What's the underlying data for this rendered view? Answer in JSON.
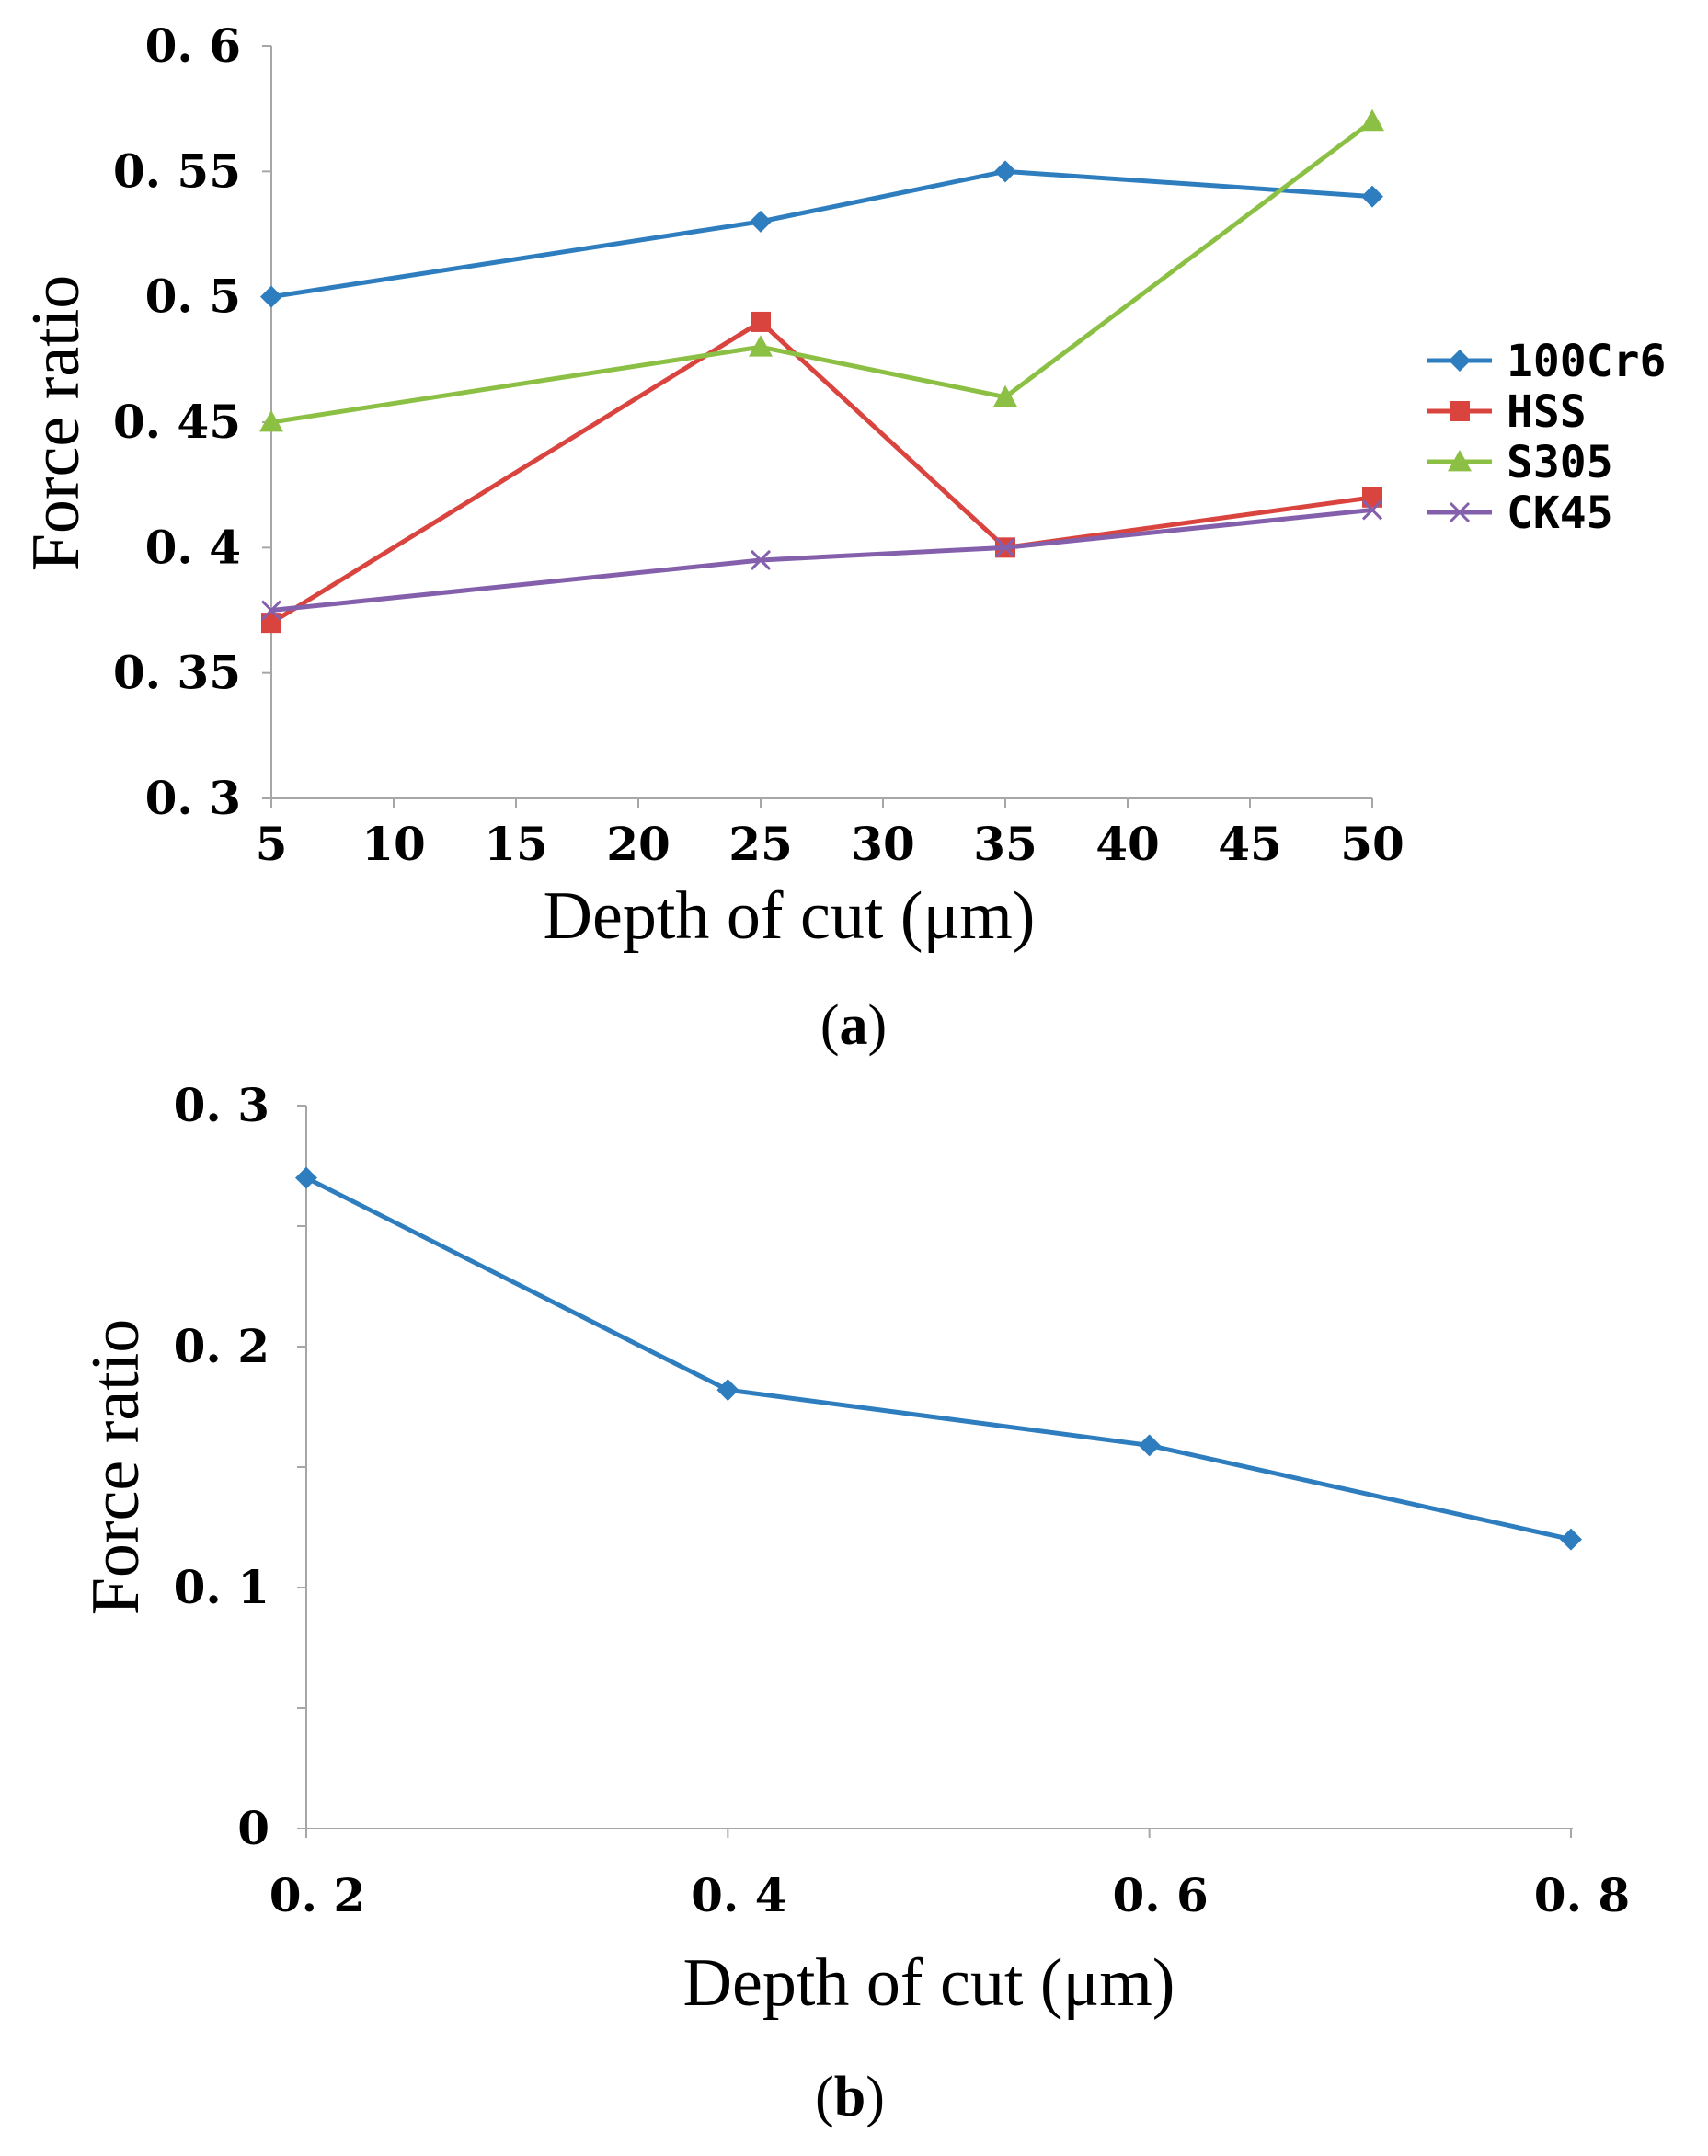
{
  "chart_data": [
    {
      "type": "line",
      "panel": "a",
      "panel_label": "a",
      "xlabel": "Depth of cut (μm)",
      "ylabel": "Force ratio",
      "xlim": [
        5,
        50
      ],
      "ylim": [
        0.3,
        0.6
      ],
      "x_ticks": [
        "5",
        "10",
        "15",
        "20",
        "25",
        "30",
        "35",
        "40",
        "45",
        "50"
      ],
      "y_ticks": [
        "0. 3",
        "0. 35",
        "0. 4",
        "0. 45",
        "0. 5",
        "0. 55",
        "0. 6"
      ],
      "x": [
        5,
        25,
        35,
        50
      ],
      "legend_position": "right",
      "series": [
        {
          "name": "100Cr6",
          "color": "#2e7ebf",
          "marker": "diamond",
          "values": [
            0.5,
            0.53,
            0.55,
            0.54
          ]
        },
        {
          "name": "HSS",
          "color": "#d9443f",
          "marker": "square",
          "values": [
            0.37,
            0.49,
            0.4,
            0.42
          ]
        },
        {
          "name": "S305",
          "color": "#8cc044",
          "marker": "triangle",
          "values": [
            0.45,
            0.48,
            0.46,
            0.57
          ]
        },
        {
          "name": "CK45",
          "color": "#8460ac",
          "marker": "x",
          "values": [
            0.375,
            0.395,
            0.4,
            0.415
          ]
        }
      ]
    },
    {
      "type": "line",
      "panel": "b",
      "panel_label": "b",
      "xlabel": "Depth of cut (μm)",
      "ylabel": "Force ratio",
      "xlim": [
        0.2,
        0.8
      ],
      "ylim": [
        0,
        0.3
      ],
      "x_ticks": [
        "0. 2",
        "0. 4",
        "0. 6",
        "0. 8"
      ],
      "y_ticks": [
        "0",
        "0. 1",
        "0. 2",
        "0. 3"
      ],
      "x": [
        0.2,
        0.4,
        0.6,
        0.8
      ],
      "series": [
        {
          "name": "Force ratio",
          "color": "#2e7ebf",
          "marker": "diamond",
          "values": [
            0.27,
            0.182,
            0.159,
            0.12
          ]
        }
      ]
    }
  ]
}
